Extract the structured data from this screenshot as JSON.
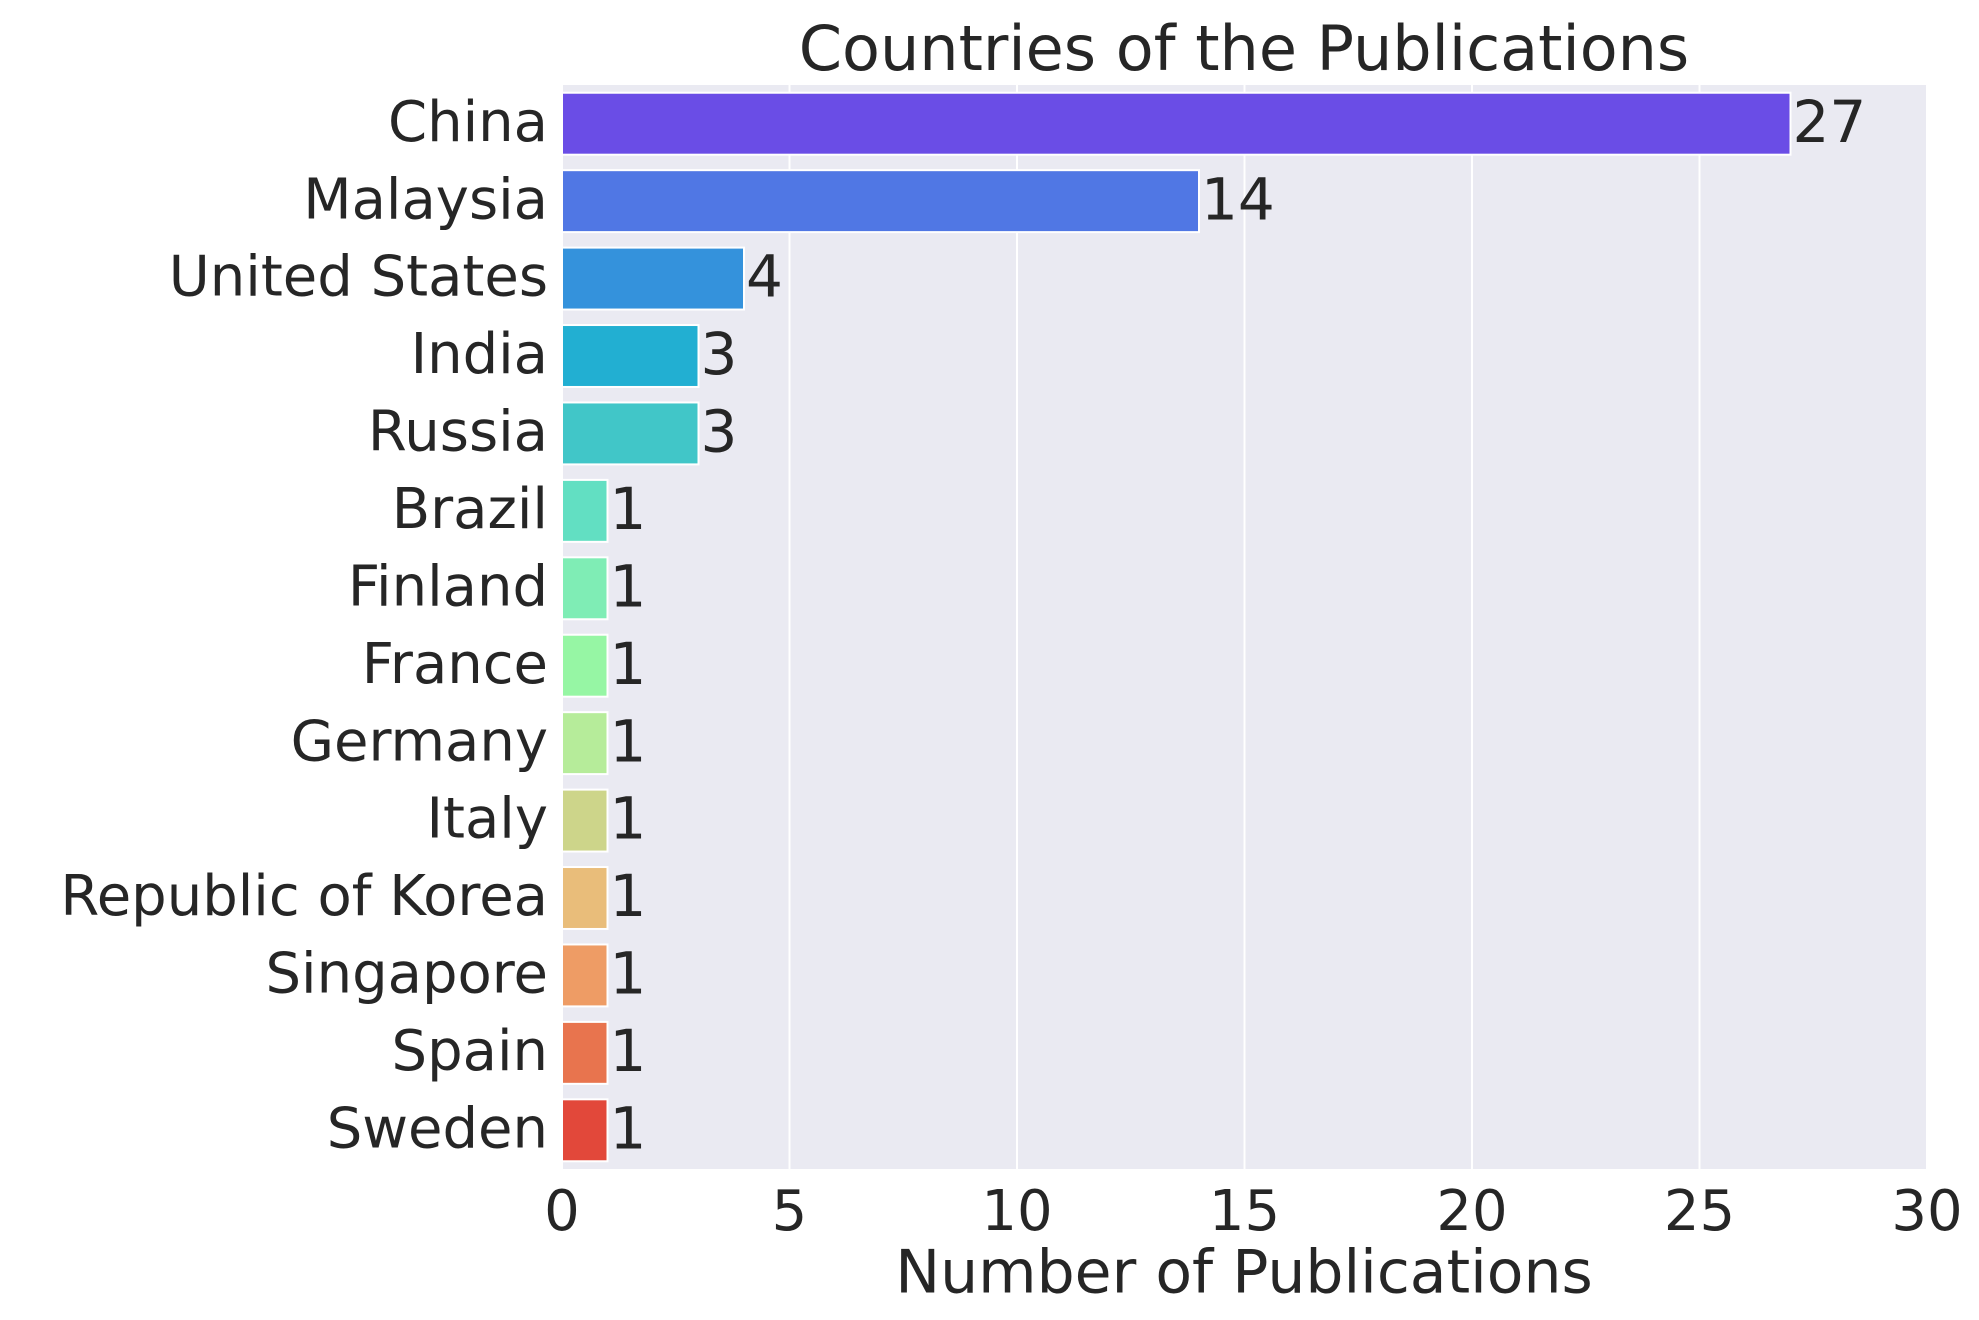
{
  "chart_data": {
    "type": "bar",
    "orientation": "horizontal",
    "title": "Countries of the Publications",
    "x_label": "Number of Publications",
    "categories": [
      "China",
      "Malaysia",
      "United States",
      "India",
      "Russia",
      "Brazil",
      "Finland",
      "France",
      "Germany",
      "Italy",
      "Republic of Korea",
      "Singapore",
      "Spain",
      "Sweden"
    ],
    "values": [
      27,
      14,
      4,
      3,
      3,
      1,
      1,
      1,
      1,
      1,
      1,
      1,
      1,
      1
    ],
    "colors": [
      "#6a4de6",
      "#5077e4",
      "#3492dc",
      "#22afd2",
      "#41c6c8",
      "#62dfc2",
      "#7fedb5",
      "#96f6a4",
      "#b6ec9a",
      "#cdd58a",
      "#e9bd7a",
      "#ee9c65",
      "#e8744e",
      "#e2483a"
    ],
    "xlim": [
      0,
      30
    ],
    "xticks": [
      0,
      5,
      10,
      15,
      20,
      25,
      30
    ],
    "grid": true,
    "data_labels": true
  }
}
